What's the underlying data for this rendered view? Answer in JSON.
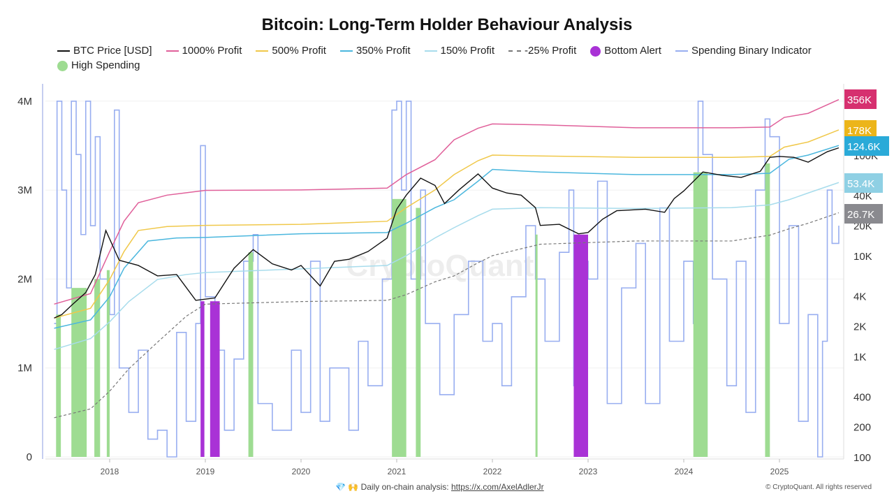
{
  "chart_data": {
    "type": "line",
    "title": "Bitcoin: Long-Term Holder Behaviour Analysis",
    "legend": [
      {
        "name": "BTC Price [USD]",
        "color": "#111111",
        "style": "line"
      },
      {
        "name": "1000% Profit",
        "color": "#e0609a",
        "style": "line"
      },
      {
        "name": "500% Profit",
        "color": "#f0c84a",
        "style": "line"
      },
      {
        "name": "350% Profit",
        "color": "#4bb7de",
        "style": "line"
      },
      {
        "name": "150% Profit",
        "color": "#a7dcec",
        "style": "line"
      },
      {
        "name": "-25% Profit",
        "color": "#777777",
        "style": "dashed"
      },
      {
        "name": "Bottom Alert",
        "color": "#a932d6",
        "style": "dot"
      },
      {
        "name": "Spending Binary Indicator",
        "color": "#98aef0",
        "style": "line"
      },
      {
        "name": "High Spending",
        "color": "#9edc92",
        "style": "dot"
      }
    ],
    "legend_placement": "top",
    "x_ticks": [
      "2018",
      "2019",
      "2020",
      "2021",
      "2022",
      "2023",
      "2024",
      "2025"
    ],
    "left_axis": {
      "ticks": [
        "0",
        "1M",
        "2M",
        "3M",
        "4M"
      ],
      "values": [
        0,
        1,
        2,
        3,
        4
      ],
      "unit": "M"
    },
    "right_axis": {
      "scale": "log",
      "ticks": [
        "100",
        "200",
        "400",
        "1K",
        "2K",
        "4K",
        "10K",
        "20K",
        "40K",
        "100K"
      ],
      "values": [
        100,
        200,
        400,
        1000,
        2000,
        4000,
        10000,
        20000,
        40000,
        100000
      ]
    },
    "last_value_labels": [
      {
        "text": "356K",
        "color": "#d6306f"
      },
      {
        "text": "178K",
        "color": "#ecb51a"
      },
      {
        "text": "124.6K",
        "color": "#2aaad8"
      },
      {
        "text": "53.4K",
        "color": "#8fd0e4"
      },
      {
        "text": "26.7K",
        "color": "#8a8a8f"
      }
    ],
    "watermark": "CryptoQuant",
    "series": [
      {
        "name": "BTC Price [USD]",
        "axis": "right",
        "x": [
          2017.42,
          2017.5,
          2017.6,
          2017.75,
          2017.85,
          2017.96,
          2018.05,
          2018.1,
          2018.3,
          2018.5,
          2018.7,
          2018.9,
          2019.0,
          2019.1,
          2019.3,
          2019.5,
          2019.7,
          2019.9,
          2020.0,
          2020.2,
          2020.35,
          2020.5,
          2020.7,
          2020.9,
          2021.0,
          2021.1,
          2021.25,
          2021.4,
          2021.5,
          2021.65,
          2021.85,
          2022.0,
          2022.15,
          2022.3,
          2022.45,
          2022.5,
          2022.7,
          2022.9,
          2023.0,
          2023.15,
          2023.3,
          2023.6,
          2023.8,
          2023.9,
          2024.0,
          2024.2,
          2024.4,
          2024.6,
          2024.8,
          2024.9,
          2025.0,
          2025.15,
          2025.3,
          2025.5,
          2025.62
        ],
        "values": [
          2400,
          2600,
          3200,
          4300,
          6500,
          17800,
          11500,
          9000,
          8000,
          6300,
          6500,
          3600,
          3700,
          3800,
          7500,
          11500,
          8300,
          7200,
          8000,
          5000,
          8800,
          9200,
          11000,
          15000,
          29000,
          40000,
          59000,
          50000,
          33000,
          45000,
          65000,
          47000,
          42000,
          40000,
          30000,
          20000,
          20500,
          16500,
          17000,
          23000,
          28000,
          29000,
          27000,
          37000,
          44000,
          68000,
          63000,
          60000,
          69000,
          95000,
          97000,
          95000,
          85000,
          108000,
          118000
        ]
      },
      {
        "name": "1000% Profit",
        "axis": "right",
        "x": [
          2017.42,
          2017.8,
          2018.0,
          2018.15,
          2018.3,
          2018.6,
          2019.0,
          2020.0,
          2020.9,
          2021.1,
          2021.4,
          2021.6,
          2021.85,
          2022.0,
          2022.5,
          2023.5,
          2024.5,
          2024.9,
          2025.05,
          2025.3,
          2025.62
        ],
        "values": [
          3300,
          4200,
          11000,
          22000,
          33600,
          40000,
          44600,
          45000,
          47000,
          64000,
          90000,
          142000,
          185000,
          204000,
          200000,
          187000,
          187000,
          190000,
          237000,
          260000,
          356000
        ]
      },
      {
        "name": "500% Profit",
        "axis": "right",
        "x": [
          2017.42,
          2017.8,
          2018.0,
          2018.15,
          2018.3,
          2018.6,
          2019.0,
          2020.0,
          2020.9,
          2021.1,
          2021.4,
          2021.6,
          2021.85,
          2022.0,
          2022.5,
          2023.5,
          2024.5,
          2024.9,
          2025.05,
          2025.3,
          2025.62
        ],
        "values": [
          2400,
          3000,
          5800,
          11000,
          17800,
          19500,
          20000,
          20500,
          22000,
          30000,
          45000,
          64000,
          88000,
          100000,
          98000,
          95000,
          95000,
          97000,
          120000,
          135000,
          178000
        ]
      },
      {
        "name": "350% Profit",
        "axis": "right",
        "x": [
          2017.42,
          2017.8,
          2018.0,
          2018.15,
          2018.4,
          2018.7,
          2019.0,
          2020.0,
          2020.9,
          2021.1,
          2021.4,
          2021.6,
          2021.85,
          2022.0,
          2022.5,
          2023.5,
          2024.5,
          2024.9,
          2025.1,
          2025.3,
          2025.62
        ],
        "values": [
          1900,
          2300,
          3900,
          7500,
          14000,
          15000,
          15200,
          16500,
          17000,
          21000,
          30000,
          36000,
          55000,
          72000,
          68000,
          64000,
          64000,
          66000,
          91000,
          100000,
          124600
        ]
      },
      {
        "name": "150% Profit",
        "axis": "right",
        "x": [
          2017.42,
          2017.8,
          2018.0,
          2018.2,
          2018.5,
          2018.8,
          2019.0,
          2020.0,
          2020.9,
          2021.1,
          2021.4,
          2021.6,
          2021.85,
          2022.0,
          2022.5,
          2023.5,
          2024.5,
          2024.9,
          2025.1,
          2025.3,
          2025.62
        ],
        "values": [
          1170,
          1500,
          2200,
          3500,
          5800,
          6500,
          6800,
          7400,
          8000,
          10000,
          15000,
          19000,
          25000,
          29000,
          30000,
          29500,
          30000,
          32000,
          36000,
          42000,
          53400
        ]
      },
      {
        "name": "-25% Profit",
        "axis": "right",
        "x": [
          2017.42,
          2017.8,
          2018.0,
          2018.2,
          2018.5,
          2018.8,
          2019.0,
          2020.0,
          2020.9,
          2021.1,
          2021.4,
          2021.6,
          2021.85,
          2022.0,
          2022.5,
          2023.5,
          2024.5,
          2024.9,
          2025.1,
          2025.3,
          2025.62
        ],
        "values": [
          245,
          300,
          450,
          750,
          1380,
          2500,
          3300,
          3500,
          3600,
          4100,
          5500,
          6300,
          8500,
          10000,
          13000,
          14000,
          14000,
          16000,
          18500,
          21000,
          26700
        ]
      },
      {
        "name": "Spending Binary Indicator",
        "axis": "left",
        "step": true,
        "x": [
          2017.42,
          2017.45,
          2017.5,
          2017.55,
          2017.6,
          2017.65,
          2017.7,
          2017.75,
          2017.8,
          2017.85,
          2017.9,
          2018.0,
          2018.05,
          2018.1,
          2018.2,
          2018.3,
          2018.4,
          2018.5,
          2018.6,
          2018.7,
          2018.8,
          2018.9,
          2018.95,
          2019.0,
          2019.1,
          2019.2,
          2019.3,
          2019.4,
          2019.5,
          2019.55,
          2019.7,
          2019.9,
          2020.0,
          2020.1,
          2020.2,
          2020.3,
          2020.5,
          2020.6,
          2020.7,
          2020.85,
          2020.95,
          2021.0,
          2021.05,
          2021.1,
          2021.15,
          2021.25,
          2021.3,
          2021.45,
          2021.6,
          2021.75,
          2021.9,
          2022.0,
          2022.1,
          2022.2,
          2022.35,
          2022.45,
          2022.55,
          2022.7,
          2022.8,
          2022.85,
          2022.9,
          2023.0,
          2023.1,
          2023.2,
          2023.35,
          2023.5,
          2023.6,
          2023.75,
          2023.85,
          2024.0,
          2024.1,
          2024.15,
          2024.2,
          2024.3,
          2024.45,
          2024.55,
          2024.65,
          2024.75,
          2024.85,
          2024.9,
          2025.0,
          2025.1,
          2025.2,
          2025.3,
          2025.4,
          2025.45,
          2025.5,
          2025.55,
          2025.62
        ],
        "values": [
          1.5,
          4.0,
          3.0,
          1.9,
          4.0,
          3.4,
          2.5,
          4.0,
          2.6,
          3.6,
          2.0,
          1.6,
          3.9,
          1.0,
          0.5,
          1.2,
          0.2,
          0.3,
          0.0,
          1.4,
          0.4,
          1.5,
          3.5,
          1.8,
          1.2,
          0.3,
          1.1,
          2.2,
          2.5,
          0.6,
          0.3,
          1.2,
          0.5,
          2.2,
          0.4,
          1.0,
          0.3,
          1.3,
          0.8,
          2.0,
          3.9,
          4.0,
          3.0,
          4.0,
          2.0,
          3.0,
          1.5,
          0.7,
          1.6,
          2.2,
          1.3,
          1.5,
          0.8,
          1.8,
          2.6,
          2.0,
          1.3,
          2.3,
          3.0,
          0.8,
          2.2,
          2.0,
          3.1,
          0.6,
          1.9,
          2.4,
          0.6,
          2.8,
          1.3,
          2.2,
          1.5,
          4.0,
          3.4,
          2.0,
          0.8,
          2.2,
          0.5,
          3.0,
          3.8,
          3.6,
          1.5,
          2.6,
          0.4,
          1.6,
          0.0,
          1.3,
          3.0,
          2.4,
          2.6
        ]
      }
    ],
    "high_spending_periods": [
      [
        2017.44,
        2017.49,
        1.6
      ],
      [
        2017.6,
        2017.76,
        1.9
      ],
      [
        2017.84,
        2017.9,
        2.0
      ],
      [
        2017.97,
        2018.0,
        2.1
      ],
      [
        2019.45,
        2019.5,
        2.3
      ],
      [
        2020.95,
        2021.1,
        2.9
      ],
      [
        2021.2,
        2021.25,
        2.8
      ],
      [
        2022.45,
        2022.47,
        2.5
      ],
      [
        2024.1,
        2024.25,
        3.2
      ],
      [
        2024.85,
        2024.9,
        3.3
      ]
    ],
    "bottom_alert_periods": [
      [
        2018.95,
        2018.99,
        1.75
      ],
      [
        2019.05,
        2019.15,
        1.75
      ],
      [
        2022.85,
        2023.0,
        2.5
      ]
    ]
  },
  "footer": {
    "icons": "💎 🙌",
    "text": "Daily on-chain analysis: ",
    "link": "https://x.com/AxelAdlerJr",
    "copyright": "© CryptoQuant. All rights reserved"
  }
}
